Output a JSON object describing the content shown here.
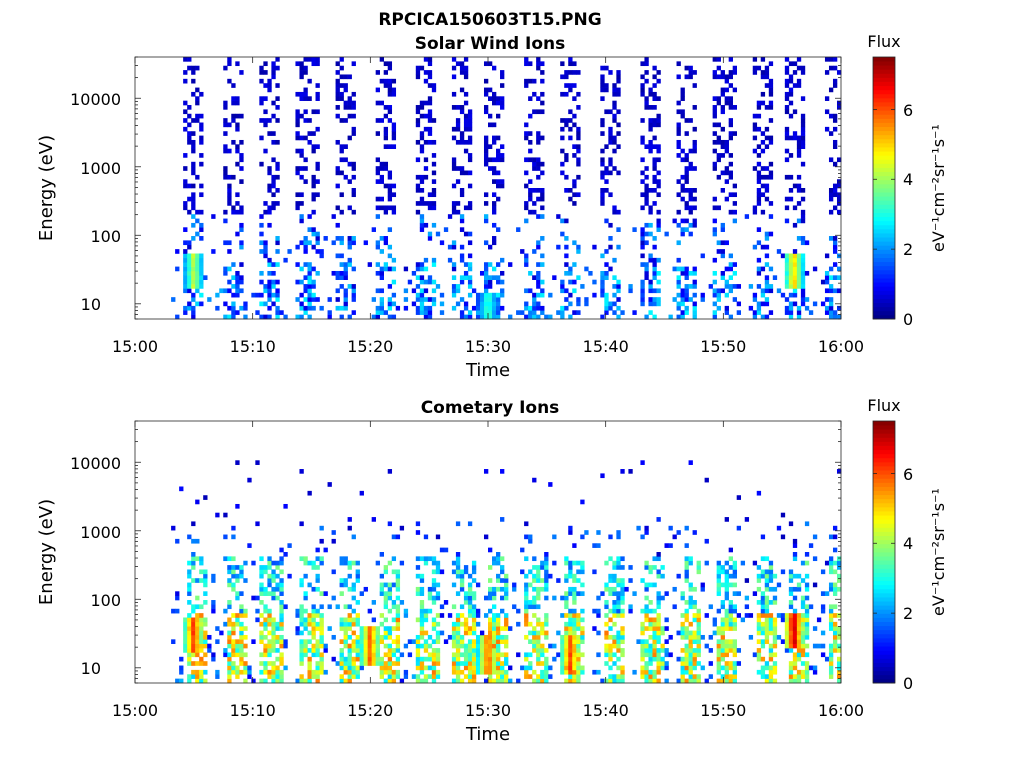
{
  "figure": {
    "title": "RPCICA150603T15.PNG"
  },
  "chart_data": [
    {
      "type": "heatmap",
      "title": "Solar Wind Ions",
      "xlabel": "Time",
      "ylabel": "Energy (eV)",
      "y_scale": "log",
      "xlim": [
        "15:00",
        "16:00"
      ],
      "ylim": [
        6,
        40000
      ],
      "x_ticks": [
        "15:00",
        "15:10",
        "15:20",
        "15:30",
        "15:40",
        "15:50",
        "16:00"
      ],
      "y_ticks": [
        "10",
        "100",
        "1000",
        "10000"
      ],
      "colorbar": {
        "title": "Flux",
        "label": "eV⁻¹cm⁻²sr⁻¹s⁻¹",
        "range": [
          0,
          7.5
        ],
        "ticks": [
          "0",
          "2",
          "4",
          "6"
        ],
        "colormap": "jet"
      },
      "sweep_start_minutes": [
        4.9,
        8.3,
        11.3,
        14.7,
        18.0,
        21.3,
        24.6,
        27.7,
        30.5,
        33.8,
        37.1,
        40.4,
        43.7,
        46.8,
        50.1,
        53.3,
        56.2,
        59.5
      ],
      "low_energy_enhancements": [
        {
          "time": "15:05",
          "energy": 30,
          "flux": 4.5
        },
        {
          "time": "15:30",
          "energy": 8,
          "flux": 3.5
        },
        {
          "time": "15:56",
          "energy": 30,
          "flux": 5.3
        }
      ],
      "grid": false
    },
    {
      "type": "heatmap",
      "title": "Cometary Ions",
      "xlabel": "Time",
      "ylabel": "Energy (eV)",
      "y_scale": "log",
      "xlim": [
        "15:00",
        "16:00"
      ],
      "ylim": [
        6,
        40000
      ],
      "x_ticks": [
        "15:00",
        "15:10",
        "15:20",
        "15:30",
        "15:40",
        "15:50",
        "16:00"
      ],
      "y_ticks": [
        "10",
        "100",
        "1000",
        "10000"
      ],
      "colorbar": {
        "title": "Flux",
        "label": "eV⁻¹cm⁻²sr⁻¹s⁻¹",
        "range": [
          0,
          7.5
        ],
        "ticks": [
          "0",
          "2",
          "4",
          "6"
        ],
        "colormap": "jet"
      },
      "sweep_start_minutes": [
        4.9,
        8.3,
        11.3,
        14.7,
        18.0,
        21.3,
        24.6,
        27.7,
        30.5,
        33.8,
        37.1,
        40.4,
        43.7,
        46.8,
        50.1,
        53.3,
        56.2,
        59.5
      ],
      "peak_flux_events": [
        {
          "time": "15:05",
          "energy": 30,
          "flux": 6.5
        },
        {
          "time": "15:20",
          "energy": 20,
          "flux": 6.2
        },
        {
          "time": "15:30",
          "energy": 15,
          "flux": 6.3
        },
        {
          "time": "15:37",
          "energy": 15,
          "flux": 6.3
        },
        {
          "time": "15:56",
          "energy": 35,
          "flux": 7.3
        }
      ],
      "grid": false
    }
  ]
}
